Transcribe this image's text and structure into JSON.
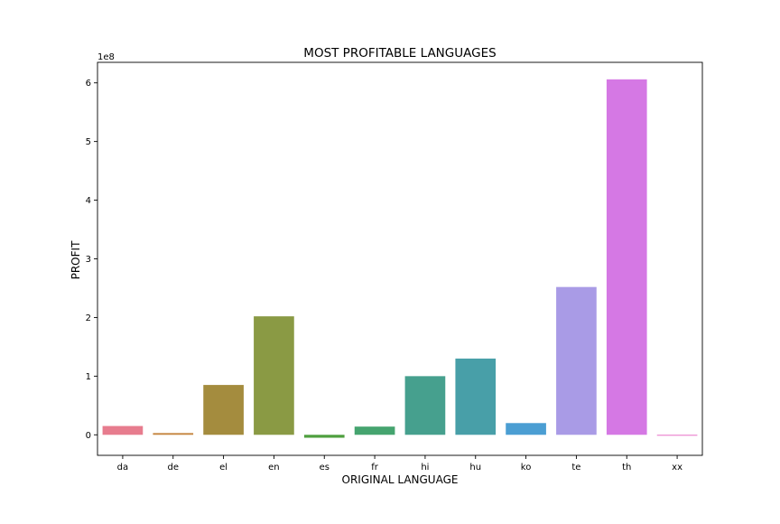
{
  "chart_data": {
    "type": "bar",
    "title": "MOST PROFITABLE LANGUAGES",
    "xlabel": "ORIGINAL LANGUAGE",
    "ylabel": "PROFIT",
    "y_offset_label": "1e8",
    "y_multiplier": 100000000,
    "ylim": [
      -0.35,
      6.35
    ],
    "yticks": [
      0,
      1,
      2,
      3,
      4,
      5,
      6
    ],
    "grid": false,
    "legend": "none",
    "categories": [
      "da",
      "de",
      "el",
      "en",
      "es",
      "fr",
      "hi",
      "hu",
      "ko",
      "te",
      "th",
      "xx"
    ],
    "values": [
      0.15,
      0.03,
      0.85,
      2.02,
      -0.05,
      0.14,
      1.0,
      1.3,
      0.2,
      2.52,
      6.06,
      -0.01
    ],
    "colors": [
      "#e77c8e",
      "#c68642",
      "#a48c3e",
      "#8a9a44",
      "#4f9f3f",
      "#45a46f",
      "#46a08e",
      "#489fa8",
      "#4b9ed3",
      "#a99be6",
      "#d578e4",
      "#e76fc7"
    ]
  }
}
